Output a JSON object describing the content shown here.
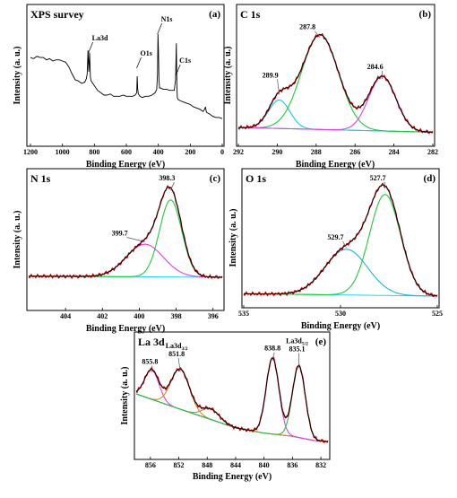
{
  "chart_data": [
    {
      "id": "a",
      "type": "line",
      "title": "XPS survey",
      "panel_label": "(a)",
      "xlabel": "Binding Energy (eV)",
      "ylabel": "Intensity (a. u.)",
      "xlim": [
        1200,
        0
      ],
      "ylim": [
        0,
        100
      ],
      "xticks": [
        1200,
        1000,
        800,
        600,
        400,
        200,
        0
      ],
      "colors": {
        "spectrum": "#000000"
      },
      "series": [
        {
          "name": "",
          "x": [
            1200,
            1180,
            1160,
            1140,
            1120,
            1100,
            1080,
            1060,
            1040,
            1020,
            1000,
            980,
            960,
            940,
            920,
            900,
            880,
            860,
            850,
            845,
            840,
            835,
            830,
            825,
            820,
            800,
            780,
            760,
            740,
            720,
            700,
            680,
            660,
            640,
            620,
            600,
            580,
            560,
            545,
            535,
            532,
            529,
            525,
            515,
            500,
            480,
            460,
            440,
            420,
            410,
            405,
            402,
            399,
            396,
            392,
            385,
            370,
            350,
            330,
            310,
            300,
            292,
            287,
            284,
            281,
            275,
            260,
            240,
            220,
            200,
            180,
            160,
            140,
            120,
            110,
            105,
            100,
            95,
            80,
            60,
            40,
            20,
            0
          ],
          "y": [
            74,
            73,
            75,
            74,
            74,
            72,
            73,
            71,
            72,
            72,
            71,
            70,
            66,
            60,
            55,
            54,
            52,
            53,
            56,
            60,
            80,
            62,
            78,
            57,
            54,
            50,
            46,
            44,
            42,
            42,
            43,
            41,
            41,
            41,
            42,
            41,
            41,
            41,
            42,
            44,
            58,
            47,
            43,
            41,
            40,
            41,
            41,
            42,
            44,
            47,
            60,
            94,
            80,
            55,
            48,
            48,
            47,
            47,
            46,
            46,
            46,
            55,
            86,
            50,
            40,
            38,
            37,
            36,
            35,
            34,
            32,
            31,
            30,
            28,
            30,
            32,
            28,
            27,
            26,
            24,
            23,
            23,
            22
          ]
        }
      ],
      "annotations": [
        {
          "text": "La3d",
          "x": 832
        },
        {
          "text": "O1s",
          "x": 530
        },
        {
          "text": "N1s",
          "x": 400
        },
        {
          "text": "C1s",
          "x": 285
        }
      ]
    },
    {
      "id": "b",
      "type": "line",
      "title": "C 1s",
      "panel_label": "(b)",
      "xlabel": "Binding Energy (eV)",
      "ylabel": "Intensity (a. u.)",
      "xlim": [
        292,
        282
      ],
      "ylim": [
        0,
        100
      ],
      "xticks": [
        292,
        290,
        288,
        286,
        284,
        282
      ],
      "baseline": {
        "x": [
          292,
          282
        ],
        "y": [
          6,
          2
        ]
      },
      "envelope_color": "#000000",
      "data_color": "#cc0000",
      "components": [
        {
          "center": 289.9,
          "amp": 24,
          "sigma": 0.55,
          "color": "#19c9d9"
        },
        {
          "center": 287.8,
          "amp": 80,
          "sigma": 0.95,
          "color": "#22c83c"
        },
        {
          "center": 284.6,
          "amp": 46,
          "sigma": 0.7,
          "color": "#e040e0"
        }
      ],
      "peak_labels": [
        "289.9",
        "287.8",
        "284.6"
      ]
    },
    {
      "id": "c",
      "type": "line",
      "title": "N 1s",
      "panel_label": "(c)",
      "xlabel": "Binding Energy (eV)",
      "ylabel": "Intensity (a. u.)",
      "xlim": [
        406,
        395.5
      ],
      "ylim": [
        0,
        100
      ],
      "xticks": [
        404,
        402,
        400,
        398,
        396
      ],
      "baseline": {
        "x": [
          406,
          395.5
        ],
        "y": [
          2,
          1
        ]
      },
      "envelope_color": "#000000",
      "data_color": "#cc0000",
      "components": [
        {
          "center": 399.7,
          "amp": 33,
          "sigma": 1.0,
          "color": "#e040e0"
        },
        {
          "center": 398.3,
          "amp": 78,
          "sigma": 0.6,
          "color": "#22c83c"
        }
      ],
      "peak_labels": [
        "399.7",
        "398.3"
      ]
    },
    {
      "id": "d",
      "type": "line",
      "title": "O 1s",
      "panel_label": "(d)",
      "xlabel": "Binding Energy (eV)",
      "ylabel": "Intensity (a. u.)",
      "xlim": [
        535,
        525
      ],
      "ylim": [
        0,
        100
      ],
      "xticks": [
        535,
        530,
        525
      ],
      "baseline": {
        "x": [
          535,
          525
        ],
        "y": [
          2,
          0
        ]
      },
      "envelope_color": "#000000",
      "data_color": "#cc0000",
      "components": [
        {
          "center": 529.7,
          "amp": 38,
          "sigma": 1.1,
          "color": "#19b4d9"
        },
        {
          "center": 527.7,
          "amp": 84,
          "sigma": 0.8,
          "color": "#22c83c"
        }
      ],
      "peak_labels": [
        "529.7",
        "527.7"
      ]
    },
    {
      "id": "e",
      "type": "line",
      "title": "La 3d",
      "panel_label": "(e)",
      "xlabel": "Binding Energy (eV)",
      "ylabel": "Intensity (a. u.)",
      "xlim": [
        858,
        831
      ],
      "ylim": [
        0,
        100
      ],
      "xticks": [
        856,
        852,
        848,
        844,
        840,
        836,
        832
      ],
      "baseline": {
        "x": [
          858,
          852,
          844,
          840,
          836,
          833,
          831
        ],
        "y": [
          50,
          36,
          18,
          13,
          10,
          6,
          5
        ]
      },
      "envelope_color": "#000000",
      "data_color": "#cc0000",
      "components": [
        {
          "center": 855.8,
          "amp": 28,
          "sigma": 1.0,
          "color": "#e040e0"
        },
        {
          "center": 851.8,
          "amp": 38,
          "sigma": 1.3,
          "color": "#d08a2a"
        },
        {
          "center": 847.5,
          "amp": 10,
          "sigma": 1.2,
          "color": "#d08a2a"
        },
        {
          "center": 838.8,
          "amp": 72,
          "sigma": 0.9,
          "color": "#e040e0"
        },
        {
          "center": 835.1,
          "amp": 68,
          "sigma": 0.9,
          "color": "#22c83c"
        }
      ],
      "peak_labels": [
        {
          "text": "855.8"
        },
        {
          "prefix": "La3d",
          "sub": "3/2",
          "text": "851.8"
        },
        {
          "text": "838.8"
        },
        {
          "prefix": "La3d",
          "sub": "5/2",
          "text": "835.1"
        }
      ]
    }
  ]
}
